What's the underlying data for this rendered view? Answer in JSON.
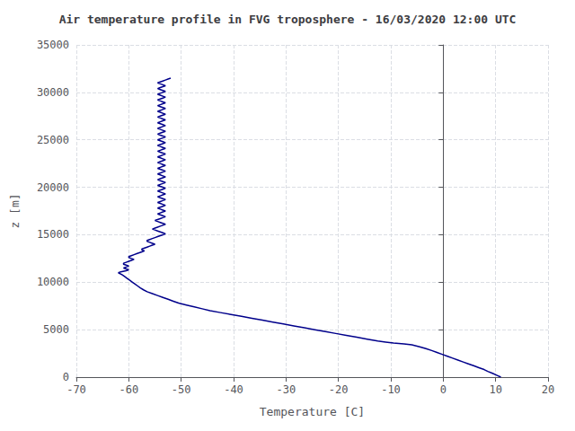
{
  "chart_data": {
    "type": "line",
    "title": "Air temperature profile in FVG troposphere - 16/03/2020 12:00 UTC",
    "xlabel": "Temperature [C]",
    "ylabel": "z [m]",
    "color": "#00008B",
    "grid": true,
    "xlim": [
      -70,
      20
    ],
    "ylim": [
      0,
      35000
    ],
    "xticks": [
      -70,
      -60,
      -50,
      -40,
      -30,
      -20,
      -10,
      0,
      10,
      20
    ],
    "yticks": [
      0,
      5000,
      10000,
      15000,
      20000,
      25000,
      30000,
      35000
    ],
    "x": [
      11.0,
      10.2,
      9.4,
      8.5,
      7.8,
      6.8,
      5.8,
      4.8,
      3.8,
      2.8,
      1.8,
      0.8,
      -0.2,
      -1.2,
      -2.2,
      -3.3,
      -4.5,
      -6.0,
      -7.5,
      -9.5,
      -11.0,
      -12.5,
      -14.5,
      -16.5,
      -18.5,
      -20.5,
      -22.5,
      -24.5,
      -26.5,
      -28.5,
      -30.5,
      -32.5,
      -34.5,
      -36.5,
      -38.5,
      -40.5,
      -42.5,
      -44.5,
      -46.0,
      -47.5,
      -49.0,
      -50.5,
      -51.5,
      -52.5,
      -53.5,
      -54.5,
      -55.5,
      -56.5,
      -57.2,
      -57.8,
      -58.3,
      -58.8,
      -59.3,
      -59.8,
      -60.3,
      -60.8,
      -61.3,
      -62.0,
      -61.5,
      -60.5,
      -60.0,
      -60.5,
      -61.0,
      -60.5,
      -60.0,
      -60.5,
      -61.0,
      -61.0,
      -60.5,
      -60.0,
      -59.5,
      -59.0,
      -59.5,
      -60.0,
      -60.0,
      -59.5,
      -59.0,
      -58.5,
      -58.0,
      -57.5,
      -57.0,
      -57.5,
      -57.5,
      -57.0,
      -56.5,
      -56.0,
      -55.5,
      -55.0,
      -55.5,
      -56.0,
      -56.5,
      -56.5,
      -56.0,
      -55.5,
      -55.0,
      -54.5,
      -54.0,
      -53.5,
      -53.0,
      -53.5,
      -54.0,
      -54.5,
      -55.0,
      -55.5,
      -55.0,
      -54.5,
      -54.0,
      -53.5,
      -53.0,
      -53.5,
      -54.0,
      -54.5,
      -55.0,
      -54.5,
      -54.0,
      -53.5,
      -53.0,
      -53.5,
      -54.0,
      -54.5,
      -54.0,
      -53.5,
      -53.0,
      -53.5,
      -54.0,
      -54.5,
      -54.0,
      -53.5,
      -53.0,
      -53.5,
      -54.0,
      -54.5,
      -54.0,
      -53.5,
      -53.0,
      -53.5,
      -54.0,
      -54.5,
      -54.0,
      -53.5,
      -53.0,
      -53.5,
      -54.0,
      -54.5,
      -54.0,
      -53.5,
      -53.0,
      -53.5,
      -54.0,
      -54.5,
      -54.0,
      -53.5,
      -53.0,
      -53.5,
      -54.0,
      -54.5,
      -54.0,
      -53.5,
      -53.0,
      -53.5,
      -54.0,
      -54.5,
      -54.0,
      -53.5,
      -53.0,
      -53.5,
      -54.0,
      -54.5,
      -54.0,
      -53.5,
      -53.0,
      -53.5,
      -54.0,
      -54.5,
      -54.0,
      -53.5,
      -53.0,
      -53.5,
      -54.0,
      -54.5,
      -54.0,
      -53.5,
      -53.0,
      -53.5,
      -54.0,
      -54.5,
      -54.0,
      -53.5,
      -53.0,
      -53.5,
      -54.0,
      -54.5,
      -54.0,
      -53.5,
      -53.0,
      -53.5,
      -54.0,
      -54.5,
      -54.0,
      -53.5,
      -53.0,
      -53.5,
      -54.0,
      -54.5,
      -54.0,
      -53.5,
      -53.0,
      -53.5,
      -54.0,
      -54.5,
      -54.0,
      -53.5,
      -53.0,
      -53.5,
      -54.0,
      -54.5,
      -54.0,
      -53.5,
      -53.0,
      -53.5,
      -54.0,
      -54.5,
      -54.0,
      -53.5,
      -53.0,
      -53.5,
      -54.0,
      -54.5,
      -54.0,
      -53.5,
      -53.0,
      -53.5,
      -54.0,
      -54.5,
      -54.0,
      -53.5,
      -53.0,
      -53.5,
      -54.0,
      -54.5,
      -54.0,
      -53.5,
      -53.0,
      -53.5,
      -54.0,
      -54.5,
      -54.0,
      -53.5,
      -53.0,
      -53.5,
      -54.0,
      -54.5,
      -54.0,
      -53.5,
      -53.0,
      -53.5,
      -54.0,
      -54.5,
      -54.0,
      -53.5,
      -53.0,
      -52.5,
      -52.0
    ],
    "values": [
      0,
      200,
      400,
      600,
      800,
      1000,
      1200,
      1400,
      1600,
      1800,
      2000,
      2200,
      2400,
      2600,
      2800,
      3000,
      3200,
      3400,
      3500,
      3600,
      3700,
      3800,
      4000,
      4200,
      4400,
      4600,
      4800,
      5000,
      5200,
      5400,
      5600,
      5800,
      6000,
      6200,
      6400,
      6600,
      6800,
      7000,
      7200,
      7400,
      7600,
      7800,
      8000,
      8200,
      8400,
      8600,
      8800,
      9000,
      9200,
      9400,
      9600,
      9800,
      10000,
      10200,
      10400,
      10600,
      10800,
      11000,
      11100,
      11200,
      11300,
      11400,
      11500,
      11600,
      11700,
      11800,
      11900,
      12000,
      12100,
      12200,
      12300,
      12400,
      12500,
      12600,
      12700,
      12800,
      12900,
      13000,
      13100,
      13200,
      13300,
      13400,
      13500,
      13600,
      13700,
      13800,
      13900,
      14000,
      14100,
      14200,
      14300,
      14400,
      14500,
      14600,
      14700,
      14800,
      14900,
      15000,
      15100,
      15200,
      15300,
      15400,
      15500,
      15600,
      15700,
      15800,
      15900,
      16000,
      16100,
      16200,
      16300,
      16400,
      16500,
      16600,
      16700,
      16800,
      16900,
      17000,
      17100,
      17200,
      17300,
      17400,
      17500,
      17600,
      17700,
      17800,
      17900,
      18000,
      18100,
      18200,
      18300,
      18400,
      18500,
      18600,
      18700,
      18800,
      18900,
      19000,
      19100,
      19200,
      19300,
      19400,
      19500,
      19600,
      19700,
      19800,
      19900,
      20000,
      20100,
      20200,
      20300,
      20400,
      20500,
      20600,
      20700,
      20800,
      20900,
      21000,
      21100,
      21200,
      21300,
      21400,
      21500,
      21600,
      21700,
      21800,
      21900,
      22000,
      22100,
      22200,
      22300,
      22400,
      22500,
      22600,
      22700,
      22800,
      22900,
      23000,
      23100,
      23200,
      23300,
      23400,
      23500,
      23600,
      23700,
      23800,
      23900,
      24000,
      24100,
      24200,
      24300,
      24400,
      24500,
      24600,
      24700,
      24800,
      24900,
      25000,
      25100,
      25200,
      25300,
      25400,
      25500,
      25600,
      25700,
      25800,
      25900,
      26000,
      26100,
      26200,
      26300,
      26400,
      26500,
      26600,
      26700,
      26800,
      26900,
      27000,
      27100,
      27200,
      27300,
      27400,
      27500,
      27600,
      27700,
      27800,
      27900,
      28000,
      28100,
      28200,
      28300,
      28400,
      28500,
      28600,
      28700,
      28800,
      28900,
      29000,
      29100,
      29200,
      29300,
      29400,
      29500,
      29600,
      29700,
      29800,
      29900,
      30000,
      30100,
      30200,
      30300,
      30400,
      30500,
      30600,
      30700,
      30800,
      30900,
      31000,
      31100,
      31200,
      31300,
      31400,
      31500
    ]
  }
}
